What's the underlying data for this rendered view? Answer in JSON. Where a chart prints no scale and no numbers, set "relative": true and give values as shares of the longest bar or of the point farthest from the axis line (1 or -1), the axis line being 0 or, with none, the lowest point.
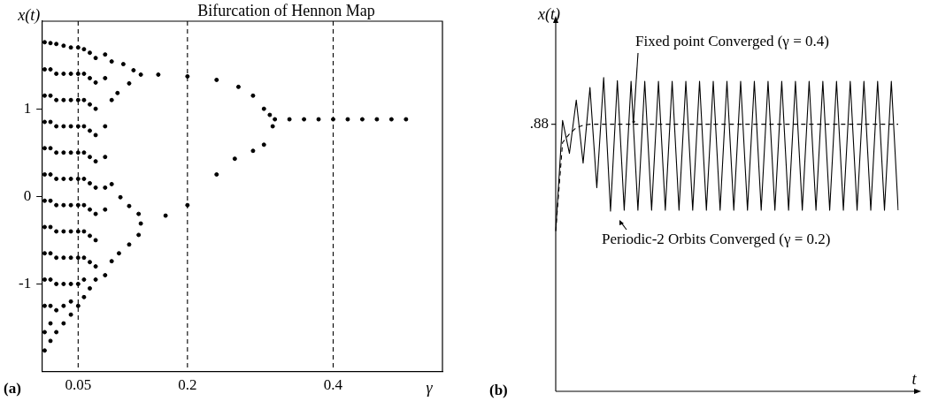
{
  "chart_data": [
    {
      "type": "scatter",
      "title": "Bifurcation of Hennon Map",
      "xlabel": "γ",
      "ylabel": "x(t)",
      "annotations": [
        "(a)"
      ],
      "xlim": [
        0,
        0.55
      ],
      "ylim": [
        -2,
        2
      ],
      "xticks": [
        0.05,
        0.2,
        0.4
      ],
      "yticks": [
        -1,
        0,
        1
      ],
      "marker": "circle",
      "ref_lines": [
        {
          "axis": "x",
          "value": 0.05,
          "line_style": "dashed"
        },
        {
          "axis": "x",
          "value": 0.2,
          "line_style": "dashed"
        },
        {
          "axis": "x",
          "value": 0.4,
          "line_style": "dashed"
        }
      ],
      "series": [
        {
          "color": "#000000",
          "x": [
            0.004,
            0.004,
            0.004,
            0.004,
            0.004,
            0.004,
            0.004,
            0.004,
            0.004,
            0.004,
            0.004,
            0.004,
            0.004,
            0.012,
            0.012,
            0.012,
            0.012,
            0.012,
            0.012,
            0.012,
            0.012,
            0.012,
            0.012,
            0.012,
            0.012,
            0.012,
            0.02,
            0.02,
            0.02,
            0.02,
            0.02,
            0.02,
            0.02,
            0.02,
            0.02,
            0.02,
            0.02,
            0.02,
            0.03,
            0.03,
            0.03,
            0.03,
            0.03,
            0.03,
            0.03,
            0.03,
            0.03,
            0.03,
            0.03,
            0.03,
            0.04,
            0.04,
            0.04,
            0.04,
            0.04,
            0.04,
            0.04,
            0.04,
            0.04,
            0.04,
            0.04,
            0.04,
            0.05,
            0.05,
            0.05,
            0.05,
            0.05,
            0.05,
            0.05,
            0.05,
            0.05,
            0.05,
            0.05,
            0.058,
            0.058,
            0.058,
            0.058,
            0.058,
            0.058,
            0.058,
            0.058,
            0.058,
            0.058,
            0.058,
            0.066,
            0.066,
            0.066,
            0.066,
            0.066,
            0.066,
            0.066,
            0.066,
            0.066,
            0.066,
            0.074,
            0.074,
            0.074,
            0.074,
            0.074,
            0.074,
            0.074,
            0.074,
            0.074,
            0.074,
            0.087,
            0.087,
            0.087,
            0.087,
            0.087,
            0.087,
            0.087,
            0.096,
            0.112,
            0.126,
            0.136,
            0.096,
            0.104,
            0.12,
            0.096,
            0.108,
            0.12,
            0.133,
            0.096,
            0.106,
            0.12,
            0.133,
            0.16,
            0.2,
            0.24,
            0.27,
            0.29,
            0.305,
            0.313,
            0.17,
            0.2,
            0.24,
            0.265,
            0.29,
            0.305,
            0.317,
            0.136,
            0.32,
            0.34,
            0.36,
            0.38,
            0.4,
            0.42,
            0.44,
            0.46,
            0.48,
            0.5
          ],
          "values": [
            1.76,
            1.45,
            1.15,
            0.85,
            0.55,
            0.25,
            -0.05,
            -0.35,
            -0.65,
            -0.95,
            -1.25,
            -1.55,
            -1.76,
            1.75,
            1.45,
            1.15,
            0.85,
            0.55,
            0.25,
            -0.05,
            -0.35,
            -0.65,
            -0.95,
            -1.25,
            -1.45,
            -1.65,
            1.74,
            1.4,
            1.1,
            0.8,
            0.5,
            0.2,
            -0.1,
            -0.4,
            -0.7,
            -1.0,
            -1.3,
            -1.55,
            1.72,
            1.4,
            1.1,
            0.8,
            0.5,
            0.2,
            -0.1,
            -0.4,
            -0.7,
            -1.0,
            -1.25,
            -1.45,
            1.7,
            1.4,
            1.1,
            0.8,
            0.5,
            0.2,
            -0.1,
            -0.4,
            -0.7,
            -1.0,
            -1.2,
            -1.35,
            1.7,
            1.4,
            1.1,
            0.8,
            0.5,
            0.2,
            -0.1,
            -0.4,
            -0.7,
            -1.0,
            -1.25,
            1.68,
            1.4,
            1.1,
            0.8,
            0.5,
            0.2,
            -0.1,
            -0.4,
            -0.7,
            -0.95,
            -1.15,
            1.64,
            1.35,
            1.05,
            0.75,
            0.45,
            0.15,
            -0.15,
            -0.45,
            -0.75,
            -1.05,
            1.58,
            1.3,
            1.0,
            0.7,
            0.4,
            0.1,
            -0.2,
            -0.5,
            -0.8,
            -0.95,
            1.62,
            1.35,
            0.8,
            0.45,
            0.1,
            -0.15,
            -0.9,
            1.54,
            1.51,
            1.44,
            1.39,
            1.1,
            1.18,
            1.29,
            0.14,
            -0.01,
            -0.11,
            -0.2,
            -0.74,
            -0.65,
            -0.55,
            -0.44,
            1.39,
            1.37,
            1.33,
            1.25,
            1.15,
            1.0,
            0.93,
            -0.22,
            -0.1,
            0.25,
            0.43,
            0.52,
            0.59,
            0.8,
            -0.31,
            0.88,
            0.88,
            0.88,
            0.88,
            0.88,
            0.88,
            0.88,
            0.88,
            0.88,
            0.88
          ]
        }
      ]
    },
    {
      "type": "line",
      "relative": true,
      "xlabel": "t",
      "ylabel": "x(t)",
      "marker": "none",
      "line_style": "solid",
      "annotations": [
        ".88",
        "Fixed point Converged (γ = 0.4)",
        {
          "text": "Periodic-2 Orbits Converged (γ = 0.2)",
          "y": 0.577
        },
        "(b)"
      ],
      "categories": [
        null,
        null,
        null,
        null,
        null,
        null,
        null,
        null,
        null,
        null,
        null,
        null,
        null,
        null,
        null,
        null,
        null,
        null,
        null,
        null,
        null,
        null,
        null,
        null,
        null,
        null,
        null,
        null,
        null,
        null,
        null,
        null,
        null,
        null,
        null,
        null,
        null,
        null,
        null,
        null,
        null,
        null,
        null,
        null,
        null,
        null,
        null,
        null,
        null,
        null,
        null
      ],
      "series": [
        {
          "color": "#000000",
          "values": [
            0.511,
            0.863,
            0.758,
            0.928,
            0.727,
            0.968,
            0.649,
            1.0,
            0.574,
            0.99,
            0.577,
            0.988,
            0.577,
            0.988,
            0.577,
            0.988,
            0.577,
            0.988,
            0.577,
            0.988,
            0.577,
            0.988,
            0.577,
            0.988,
            0.577,
            0.988,
            0.577,
            0.988,
            0.577,
            0.988,
            0.577,
            0.988,
            0.577,
            0.988,
            0.577,
            0.988,
            0.577,
            0.988,
            0.577,
            0.988,
            0.577,
            0.988,
            0.577,
            0.988,
            0.577,
            0.988,
            0.577,
            0.988,
            0.577,
            0.988,
            0.577
          ]
        },
        {
          "color": "#000000",
          "line_style": "dashed",
          "values": [
            0.511,
            0.793,
            0.82,
            0.84,
            0.848,
            0.851,
            0.851,
            0.851,
            0.851,
            0.851,
            0.851,
            0.851,
            0.851,
            0.851,
            0.851,
            0.851,
            0.851,
            0.851,
            0.851,
            0.851,
            0.851,
            0.851,
            0.851,
            0.851,
            0.851,
            0.851,
            0.851,
            0.851,
            0.851,
            0.851,
            0.851,
            0.851,
            0.851,
            0.851,
            0.851,
            0.851,
            0.851,
            0.851,
            0.851,
            0.851,
            0.851,
            0.851,
            0.851,
            0.851,
            0.851,
            0.851,
            0.851,
            0.851,
            0.851,
            0.851,
            0.851
          ]
        }
      ]
    }
  ]
}
